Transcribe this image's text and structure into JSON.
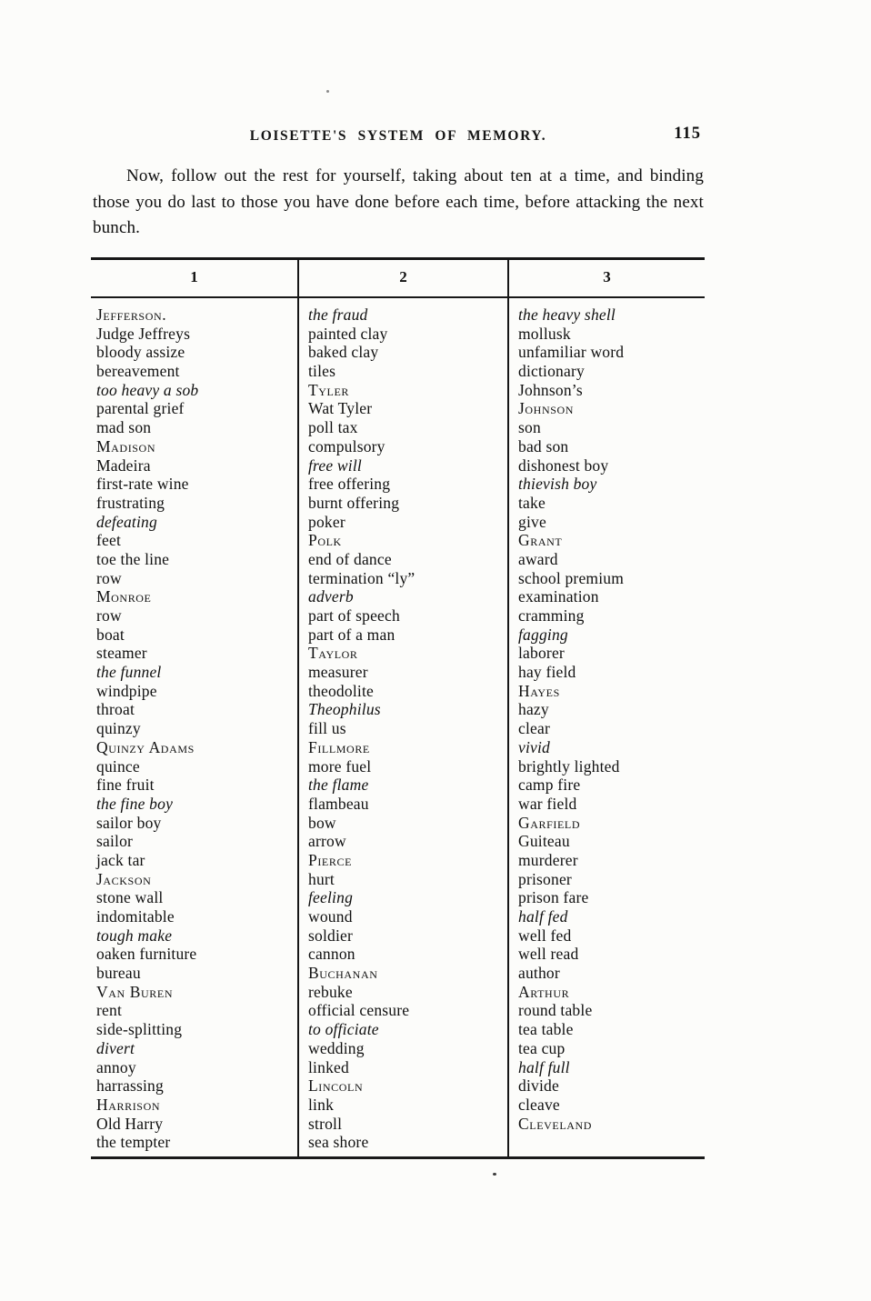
{
  "page": {
    "paper_color": "#fcfcfa",
    "ink_color": "#101010"
  },
  "header": {
    "running_title": "LOISETTE'S SYSTEM OF MEMORY.",
    "page_number": "115"
  },
  "intro": {
    "text": "Now, follow out the rest for yourself, taking about ten at a time, and binding those you do last to those you have done before each time, before attacking the next bunch."
  },
  "table": {
    "column_headers": [
      "1",
      "2",
      "3"
    ],
    "style_legend": {
      "n": "normal",
      "i": "italic",
      "sc": "small-caps"
    },
    "columns": [
      {
        "entries": [
          {
            "t": "Jefferson.",
            "s": "sc"
          },
          {
            "t": "Judge Jeffreys",
            "s": "n"
          },
          {
            "t": "bloody assize",
            "s": "n"
          },
          {
            "t": "bereavement",
            "s": "n"
          },
          {
            "t": "too heavy a sob",
            "s": "i"
          },
          {
            "t": "parental grief",
            "s": "n"
          },
          {
            "t": "mad son",
            "s": "n"
          },
          {
            "t": "Madison",
            "s": "sc"
          },
          {
            "t": "Madeira",
            "s": "n"
          },
          {
            "t": "first-rate wine",
            "s": "n"
          },
          {
            "t": "frustrating",
            "s": "n"
          },
          {
            "t": "defeating",
            "s": "i"
          },
          {
            "t": "feet",
            "s": "n"
          },
          {
            "t": "toe the line",
            "s": "n"
          },
          {
            "t": "row",
            "s": "n"
          },
          {
            "t": "Monroe",
            "s": "sc"
          },
          {
            "t": "row",
            "s": "n"
          },
          {
            "t": "boat",
            "s": "n"
          },
          {
            "t": "steamer",
            "s": "n"
          },
          {
            "t": "the funnel",
            "s": "i"
          },
          {
            "t": "windpipe",
            "s": "n"
          },
          {
            "t": "throat",
            "s": "n"
          },
          {
            "t": "quinzy",
            "s": "n"
          },
          {
            "t": "Quinzy Adams",
            "s": "sc"
          },
          {
            "t": "quince",
            "s": "n"
          },
          {
            "t": "fine fruit",
            "s": "n"
          },
          {
            "t": "the fine boy",
            "s": "i"
          },
          {
            "t": "sailor boy",
            "s": "n"
          },
          {
            "t": "sailor",
            "s": "n"
          },
          {
            "t": "jack tar",
            "s": "n"
          },
          {
            "t": "Jackson",
            "s": "sc"
          },
          {
            "t": "stone wall",
            "s": "n"
          },
          {
            "t": "indomitable",
            "s": "n"
          },
          {
            "t": "tough make",
            "s": "i"
          },
          {
            "t": "oaken furniture",
            "s": "n"
          },
          {
            "t": "bureau",
            "s": "n"
          },
          {
            "t": "Van Buren",
            "s": "sc"
          },
          {
            "t": "rent",
            "s": "n"
          },
          {
            "t": "side-splitting",
            "s": "n"
          },
          {
            "t": "divert",
            "s": "i"
          },
          {
            "t": "annoy",
            "s": "n"
          },
          {
            "t": "harrassing",
            "s": "n"
          },
          {
            "t": "Harrison",
            "s": "sc"
          },
          {
            "t": "Old Harry",
            "s": "n"
          },
          {
            "t": "the tempter",
            "s": "n"
          }
        ]
      },
      {
        "entries": [
          {
            "t": "the fraud",
            "s": "i"
          },
          {
            "t": "painted clay",
            "s": "n"
          },
          {
            "t": "baked clay",
            "s": "n"
          },
          {
            "t": "tiles",
            "s": "n"
          },
          {
            "t": "Tyler",
            "s": "sc"
          },
          {
            "t": "Wat Tyler",
            "s": "n"
          },
          {
            "t": "poll tax",
            "s": "n"
          },
          {
            "t": "compulsory",
            "s": "n"
          },
          {
            "t": "free will",
            "s": "i"
          },
          {
            "t": "free offering",
            "s": "n"
          },
          {
            "t": "burnt offering",
            "s": "n"
          },
          {
            "t": "poker",
            "s": "n"
          },
          {
            "t": "Polk",
            "s": "sc"
          },
          {
            "t": "end of dance",
            "s": "n"
          },
          {
            "t": "termination “ly”",
            "s": "n"
          },
          {
            "t": "adverb",
            "s": "i"
          },
          {
            "t": "part of speech",
            "s": "n"
          },
          {
            "t": "part of a man",
            "s": "n"
          },
          {
            "t": "Taylor",
            "s": "sc"
          },
          {
            "t": "measurer",
            "s": "n"
          },
          {
            "t": "theodolite",
            "s": "n"
          },
          {
            "t": "Theophilus",
            "s": "i"
          },
          {
            "t": "fill us",
            "s": "n"
          },
          {
            "t": "Fillmore",
            "s": "sc"
          },
          {
            "t": "more fuel",
            "s": "n"
          },
          {
            "t": "the flame",
            "s": "i"
          },
          {
            "t": "flambeau",
            "s": "n"
          },
          {
            "t": "bow",
            "s": "n"
          },
          {
            "t": "arrow",
            "s": "n"
          },
          {
            "t": "Pierce",
            "s": "sc"
          },
          {
            "t": "hurt",
            "s": "n"
          },
          {
            "t": "feeling",
            "s": "i"
          },
          {
            "t": "wound",
            "s": "n"
          },
          {
            "t": "soldier",
            "s": "n"
          },
          {
            "t": "cannon",
            "s": "n"
          },
          {
            "t": "Buchanan",
            "s": "sc"
          },
          {
            "t": "rebuke",
            "s": "n"
          },
          {
            "t": "official censure",
            "s": "n"
          },
          {
            "t": "to officiate",
            "s": "i"
          },
          {
            "t": "wedding",
            "s": "n"
          },
          {
            "t": "linked",
            "s": "n"
          },
          {
            "t": "Lincoln",
            "s": "sc"
          },
          {
            "t": "link",
            "s": "n"
          },
          {
            "t": "stroll",
            "s": "n"
          },
          {
            "t": "sea shore",
            "s": "n"
          }
        ]
      },
      {
        "entries": [
          {
            "t": "the heavy shell",
            "s": "i"
          },
          {
            "t": "mollusk",
            "s": "n"
          },
          {
            "t": "unfamiliar word",
            "s": "n"
          },
          {
            "t": "dictionary",
            "s": "n"
          },
          {
            "t": "Johnson’s",
            "s": "n"
          },
          {
            "t": "Johnson",
            "s": "sc"
          },
          {
            "t": "son",
            "s": "n"
          },
          {
            "t": "bad son",
            "s": "n"
          },
          {
            "t": "dishonest boy",
            "s": "n"
          },
          {
            "t": "thievish boy",
            "s": "i"
          },
          {
            "t": "take",
            "s": "n"
          },
          {
            "t": "give",
            "s": "n"
          },
          {
            "t": "Grant",
            "s": "sc"
          },
          {
            "t": "award",
            "s": "n"
          },
          {
            "t": "school premium",
            "s": "n"
          },
          {
            "t": "examination",
            "s": "n"
          },
          {
            "t": "cramming",
            "s": "n"
          },
          {
            "t": "fagging",
            "s": "i"
          },
          {
            "t": "laborer",
            "s": "n"
          },
          {
            "t": "hay field",
            "s": "n"
          },
          {
            "t": "Hayes",
            "s": "sc"
          },
          {
            "t": "hazy",
            "s": "n"
          },
          {
            "t": "clear",
            "s": "n"
          },
          {
            "t": "vivid",
            "s": "i"
          },
          {
            "t": "brightly lighted",
            "s": "n"
          },
          {
            "t": "camp fire",
            "s": "n"
          },
          {
            "t": "war field",
            "s": "n"
          },
          {
            "t": "Garfield",
            "s": "sc"
          },
          {
            "t": "Guiteau",
            "s": "n"
          },
          {
            "t": "murderer",
            "s": "n"
          },
          {
            "t": "prisoner",
            "s": "n"
          },
          {
            "t": "prison fare",
            "s": "n"
          },
          {
            "t": "half fed",
            "s": "i"
          },
          {
            "t": "well fed",
            "s": "n"
          },
          {
            "t": "well read",
            "s": "n"
          },
          {
            "t": "author",
            "s": "n"
          },
          {
            "t": "Arthur",
            "s": "sc"
          },
          {
            "t": "round table",
            "s": "n"
          },
          {
            "t": "tea table",
            "s": "n"
          },
          {
            "t": "tea cup",
            "s": "n"
          },
          {
            "t": "half full",
            "s": "i"
          },
          {
            "t": "divide",
            "s": "n"
          },
          {
            "t": "cleave",
            "s": "n"
          },
          {
            "t": "Cleveland",
            "s": "sc"
          }
        ]
      }
    ]
  }
}
